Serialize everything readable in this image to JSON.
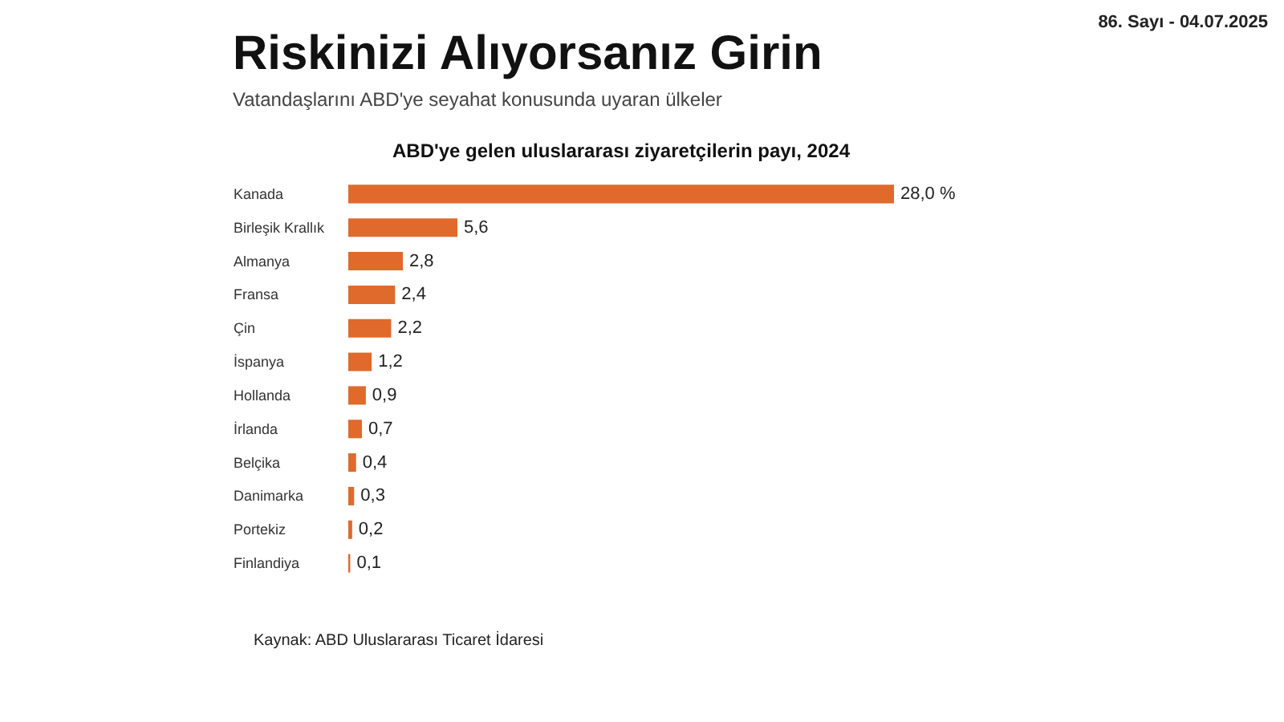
{
  "chart_data": {
    "type": "bar",
    "orientation": "horizontal",
    "title": "Riskinizi Alıyorsanız Girin",
    "subtitle": "Vatandaşlarını ABD'ye seyahat konusunda uyaran ülkeler",
    "categories": [
      "Kanada",
      "Birleşik Krallık",
      "Almanya",
      "Fransa",
      "Çin",
      "İspanya",
      "Hollanda",
      "İrlanda",
      "Belçika",
      "Danimarka",
      "Portekiz",
      "Finlandiya"
    ],
    "values": [
      28.0,
      5.6,
      2.8,
      2.4,
      2.2,
      1.2,
      0.9,
      0.7,
      0.4,
      0.3,
      0.2,
      0.1
    ],
    "value_labels": [
      "28,0 %",
      "5,6",
      "2,8",
      "2,4",
      "2,2",
      "1,2",
      "0,9",
      "0,7",
      "0,4",
      "0,3",
      "0,2",
      "0,1"
    ],
    "color": "#e0692c",
    "tick_labels": "y",
    "annotations": [
      "ABD'ye gelen uluslararası ziyaretçilerin payı, 2024",
      "Kaynak: ABD Uluslararası Ticaret İdaresi",
      "86. Sayı - 04.07.2025"
    ]
  }
}
